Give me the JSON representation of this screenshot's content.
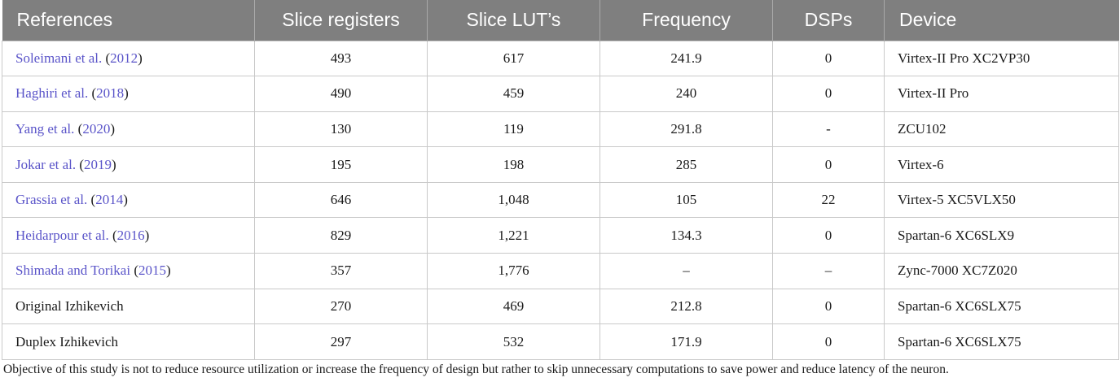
{
  "table": {
    "headers": [
      "References",
      "Slice registers",
      "Slice LUT’s",
      "Frequency",
      "DSPs",
      "Device"
    ],
    "rows": [
      {
        "ref_name": "Soleimani et al.",
        "ref_open": " (",
        "ref_year": "2012",
        "ref_close": ")",
        "registers": "493",
        "luts": "617",
        "frequency": "241.9",
        "dsps": "0",
        "device": "Virtex-II Pro XC2VP30"
      },
      {
        "ref_name": "Haghiri et al.",
        "ref_open": " (",
        "ref_year": "2018",
        "ref_close": ")",
        "registers": "490",
        "luts": "459",
        "frequency": "240",
        "dsps": "0",
        "device": "Virtex-II Pro"
      },
      {
        "ref_name": "Yang et al.",
        "ref_open": " (",
        "ref_year": "2020",
        "ref_close": ")",
        "registers": "130",
        "luts": "119",
        "frequency": "291.8",
        "dsps": "-",
        "device": "ZCU102"
      },
      {
        "ref_name": "Jokar et al.",
        "ref_open": " (",
        "ref_year": "2019",
        "ref_close": ")",
        "registers": "195",
        "luts": "198",
        "frequency": "285",
        "dsps": "0",
        "device": "Virtex-6"
      },
      {
        "ref_name": "Grassia et al.",
        "ref_open": " (",
        "ref_year": "2014",
        "ref_close": ")",
        "registers": "646",
        "luts": "1,048",
        "frequency": "105",
        "dsps": "22",
        "device": "Virtex-5 XC5VLX50"
      },
      {
        "ref_name": "Heidarpour et al.",
        "ref_open": " (",
        "ref_year": "2016",
        "ref_close": ")",
        "registers": "829",
        "luts": "1,221",
        "frequency": "134.3",
        "dsps": "0",
        "device": "Spartan-6 XC6SLX9"
      },
      {
        "ref_name": "Shimada and Torikai",
        "ref_open": " (",
        "ref_year": "2015",
        "ref_close": ")",
        "registers": "357",
        "luts": "1,776",
        "frequency": "–",
        "dsps": "–",
        "device": "Zync-7000 XC7Z020"
      },
      {
        "ref_name": "Original Izhikevich",
        "ref_open": "",
        "ref_year": "",
        "ref_close": "",
        "registers": "270",
        "luts": "469",
        "frequency": "212.8",
        "dsps": "0",
        "device": "Spartan-6 XC6SLX75"
      },
      {
        "ref_name": "Duplex Izhikevich",
        "ref_open": "",
        "ref_year": "",
        "ref_close": "",
        "registers": "297",
        "luts": "532",
        "frequency": "171.9",
        "dsps": "0",
        "device": "Spartan-6  XC6SLX75"
      }
    ],
    "linked_rows": 7
  },
  "footnote": "Objective of this study is not to reduce resource utilization or increase the frequency of design but rather to skip unnecessary computations to save power and reduce latency of the neuron.",
  "colors": {
    "header_bg": "#7f7f7f",
    "header_text": "#ffffff",
    "link": "#5a54c9",
    "border": "#c9c9c9"
  }
}
